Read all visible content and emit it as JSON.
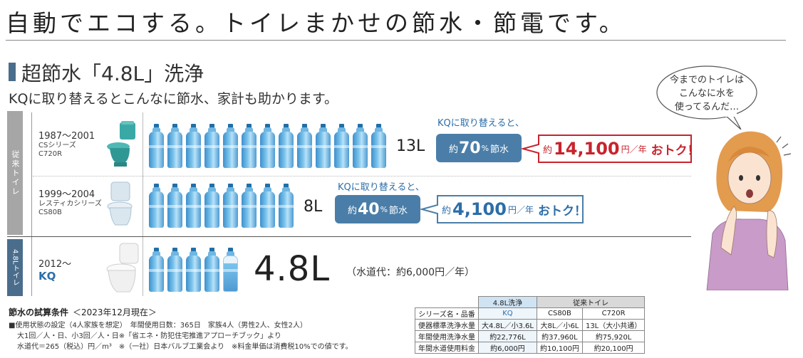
{
  "headline": "自動でエコする。トイレまかせの節水・節電です。",
  "section_title": "超節水「4.8L」洗浄",
  "subtitle": "KQに取り替えるとこんなに節水、家計も助かります。",
  "legacy_tab": "従来トイレ",
  "new_tab": "4.8Lトイレ",
  "rows": [
    {
      "year": "1987〜2001",
      "model_line1": "CSシリーズ",
      "model_line2": "C720R",
      "volume": "13L",
      "bottles": 13
    },
    {
      "year": "1999〜2004",
      "model_line1": "レスティカシリーズ",
      "model_line2": "CS80B",
      "volume": "8L",
      "bottles": 8
    },
    {
      "year": "2012〜",
      "model_line1": "KQ",
      "volume": "4.8L",
      "bottles": 4.8,
      "water_cost": "（水道代：約6,000円／年）"
    }
  ],
  "savings": [
    {
      "note": "KQに取り替えると、",
      "prefix": "約",
      "percent": "70",
      "unit": "%",
      "suffix": "節水",
      "money_prefix": "約",
      "money": "14,100",
      "money_unit": "円／年",
      "deal": "おトク！",
      "color": "#c8232c"
    },
    {
      "note": "KQに取り替えると、",
      "prefix": "約",
      "percent": "40",
      "unit": "%",
      "suffix": "節水",
      "money_prefix": "約",
      "money": "4,100",
      "money_unit": "円／年",
      "deal": "おトク！",
      "color": "#2c6ea8"
    }
  ],
  "speech_bubble": [
    "今までのトイレは",
    "こんなに水を",
    "使ってるんだ…"
  ],
  "conditions": {
    "title": "節水の試算条件",
    "date": "＜2023年12月現在＞",
    "lines": [
      "■使用状態の設定（4人家族を想定）　年間使用日数：365日　家族4人（男性2人、女性2人）",
      "大1回／人・日、小3回／人・日※「省エネ・防犯住宅推進アプローチブック」より",
      "水道代＝265（税込）円／m³　※（一社）日本バルブ工業会より　※料金単価は消費税10%での値です。"
    ]
  },
  "spec_table": {
    "group_new": "4.8L洗浄",
    "group_old": "従来トイレ",
    "header": [
      "シリーズ名・品番",
      "KQ",
      "CS80B",
      "C720R"
    ],
    "rows": [
      [
        "便器標準洗浄水量",
        "大4.8L／小3.6L",
        "大8L／小6L",
        "13L（大小共通）"
      ],
      [
        "年間使用洗浄水量",
        "約22,776L",
        "約37,960L",
        "約75,920L"
      ],
      [
        "年間水道使用料金",
        "約6,000円",
        "約10,100円",
        "約20,100円"
      ]
    ]
  },
  "colors": {
    "accent_blue": "#4a7ea8",
    "deal_red": "#c8232c",
    "kq_blue": "#2c6ea8",
    "legacy_gray": "#a6a6a6"
  }
}
